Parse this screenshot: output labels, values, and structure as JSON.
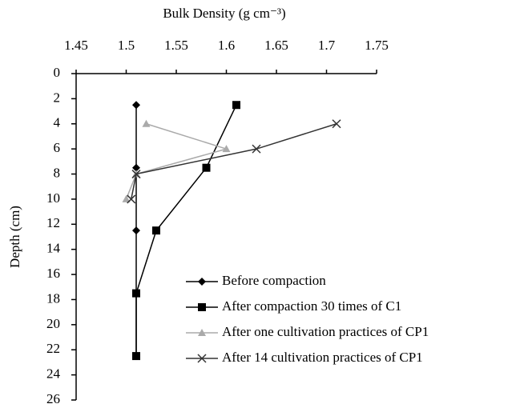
{
  "chart_data": {
    "type": "line",
    "title": "Bulk Density (g cm⁻³)",
    "y_label": "Depth (cm)",
    "xlim": [
      1.45,
      1.75
    ],
    "xticks": [
      1.45,
      1.5,
      1.55,
      1.6,
      1.65,
      1.7,
      1.75
    ],
    "ylim": [
      0,
      26
    ],
    "yticks": [
      0,
      2,
      4,
      6,
      8,
      10,
      12,
      14,
      16,
      18,
      20,
      22,
      24,
      26
    ],
    "y_inverted": true,
    "x_axis_position": "top",
    "series": [
      {
        "name": "Before compaction",
        "color": "#000000",
        "marker": "diamond",
        "x": [
          1.51,
          1.51,
          1.51,
          1.51,
          1.51
        ],
        "y": [
          2.5,
          7.5,
          12.5,
          17.5,
          22.5
        ]
      },
      {
        "name": "After compaction 30 times of C1",
        "color": "#000000",
        "marker": "square",
        "x": [
          1.61,
          1.58,
          1.53,
          1.51,
          1.51
        ],
        "y": [
          2.5,
          7.5,
          12.5,
          17.5,
          22.5
        ]
      },
      {
        "name": "After one cultivation practices of CP1",
        "color": "#aaaaaa",
        "marker": "triangle",
        "x": [
          1.52,
          1.6,
          1.51,
          1.5
        ],
        "y": [
          4,
          6,
          8,
          10
        ]
      },
      {
        "name": "After 14 cultivation practices of CP1",
        "color": "#333333",
        "marker": "x",
        "x": [
          1.71,
          1.63,
          1.51,
          1.505
        ],
        "y": [
          4,
          6,
          8,
          10
        ]
      }
    ],
    "legend": "lower right"
  }
}
